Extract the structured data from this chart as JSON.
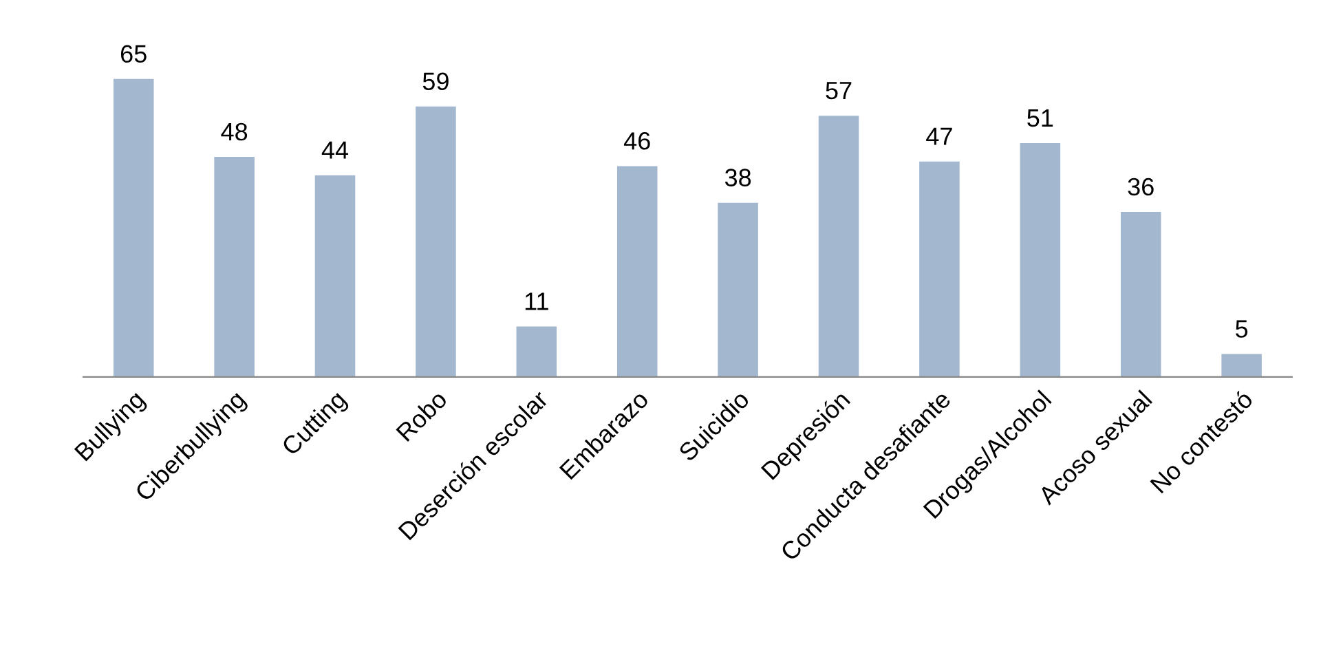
{
  "chart_data": {
    "type": "bar",
    "categories": [
      "Bullying",
      "Ciberbullying",
      "Cutting",
      "Robo",
      "Deserción escolar",
      "Embarazo",
      "Suicidio",
      "Depresión",
      "Conducta desafiante",
      "Drogas/Alcohol",
      "Acoso sexual",
      "No contestó"
    ],
    "values": [
      65,
      48,
      44,
      59,
      11,
      46,
      38,
      57,
      47,
      51,
      36,
      5
    ],
    "color": "#a3b8cf",
    "data_labels": true,
    "grid": false,
    "legend": false
  }
}
